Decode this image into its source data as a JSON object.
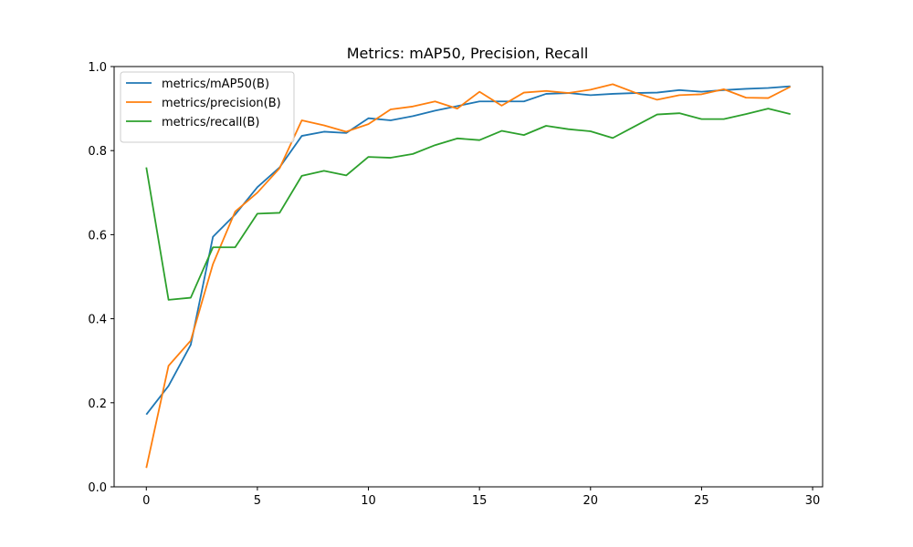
{
  "chart_data": {
    "type": "line",
    "title": "Metrics: mAP50, Precision, Recall",
    "xlabel": "",
    "ylabel": "",
    "xlim": [
      -1.45,
      30.45
    ],
    "ylim": [
      0.0,
      1.0
    ],
    "xticks": [
      0,
      5,
      10,
      15,
      20,
      25,
      30
    ],
    "yticks": [
      0.0,
      0.2,
      0.4,
      0.6,
      0.8,
      1.0
    ],
    "xtick_labels": [
      "0",
      "5",
      "10",
      "15",
      "20",
      "25",
      "30"
    ],
    "ytick_labels": [
      "0.0",
      "0.2",
      "0.4",
      "0.6",
      "0.8",
      "1.0"
    ],
    "grid": false,
    "legend_position": "upper-left",
    "x": [
      0,
      1,
      2,
      3,
      4,
      5,
      6,
      7,
      8,
      9,
      10,
      11,
      12,
      13,
      14,
      15,
      16,
      17,
      18,
      19,
      20,
      21,
      22,
      23,
      24,
      25,
      26,
      27,
      28,
      29
    ],
    "series": [
      {
        "name": "metrics/mAP50(B)",
        "color": "#1f77b4",
        "values": [
          0.172,
          0.24,
          0.338,
          0.595,
          0.648,
          0.713,
          0.76,
          0.835,
          0.845,
          0.842,
          0.877,
          0.872,
          0.882,
          0.895,
          0.906,
          0.917,
          0.917,
          0.917,
          0.935,
          0.937,
          0.932,
          0.935,
          0.937,
          0.938,
          0.944,
          0.94,
          0.944,
          0.947,
          0.949,
          0.953
        ]
      },
      {
        "name": "metrics/precision(B)",
        "color": "#ff7f0e",
        "values": [
          0.045,
          0.288,
          0.348,
          0.53,
          0.655,
          0.7,
          0.758,
          0.872,
          0.86,
          0.845,
          0.863,
          0.898,
          0.905,
          0.917,
          0.9,
          0.94,
          0.907,
          0.938,
          0.942,
          0.937,
          0.945,
          0.958,
          0.938,
          0.921,
          0.932,
          0.934,
          0.946,
          0.926,
          0.925,
          0.952
        ]
      },
      {
        "name": "metrics/recall(B)",
        "color": "#2ca02c",
        "values": [
          0.76,
          0.445,
          0.45,
          0.57,
          0.57,
          0.65,
          0.652,
          0.74,
          0.752,
          0.741,
          0.785,
          0.783,
          0.792,
          0.813,
          0.829,
          0.825,
          0.847,
          0.837,
          0.859,
          0.851,
          0.846,
          0.83,
          0.858,
          0.886,
          0.889,
          0.875,
          0.875,
          0.887,
          0.9,
          0.887
        ]
      }
    ]
  }
}
